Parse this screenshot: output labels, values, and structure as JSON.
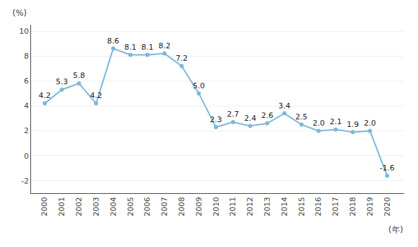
{
  "chart_data": {
    "type": "line",
    "x": [
      2000,
      2001,
      2002,
      2003,
      2004,
      2005,
      2006,
      2007,
      2008,
      2009,
      2010,
      2011,
      2012,
      2013,
      2014,
      2015,
      2016,
      2017,
      2018,
      2019,
      2020
    ],
    "values": [
      4.2,
      5.3,
      5.8,
      4.2,
      8.6,
      8.1,
      8.1,
      8.2,
      7.2,
      5.0,
      2.3,
      2.7,
      2.4,
      2.6,
      3.4,
      2.5,
      2.0,
      2.1,
      1.9,
      2.0,
      -1.6
    ],
    "value_labels": [
      "4.2",
      "5.3",
      "5.8",
      "4.2",
      "8.6",
      "8.1",
      "8.1",
      "8.2",
      "7.2",
      "5.0",
      "2.3",
      "2.7",
      "2.4",
      "2.6",
      "3.4",
      "2.5",
      "2.0",
      "2.1",
      "1.9",
      "2.0",
      "-1.6"
    ],
    "color": "#7ab8d9",
    "marker": "circle",
    "line_style": "solid",
    "data_labels": true,
    "xlabel": "(年)",
    "ylabel": "(%)",
    "xlim": [
      1999.2,
      2021.0
    ],
    "xticks": [
      2000,
      2001,
      2002,
      2003,
      2004,
      2005,
      2006,
      2007,
      2008,
      2009,
      2010,
      2011,
      2012,
      2013,
      2014,
      2015,
      2016,
      2017,
      2018,
      2019,
      2020
    ],
    "ylim": [
      -3,
      10.5
    ],
    "yticks": [
      -2,
      0,
      2,
      4,
      6,
      8,
      10
    ],
    "grid": true
  }
}
